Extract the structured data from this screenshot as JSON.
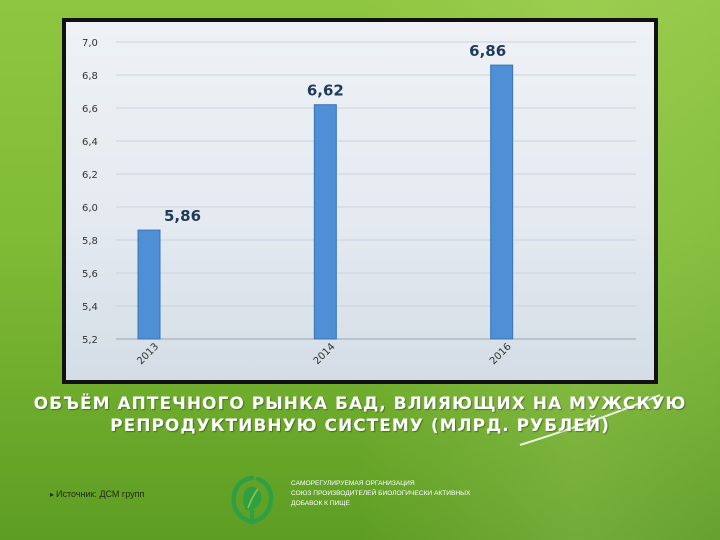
{
  "slide": {
    "title_line1": "ОБЪЁМ АПТЕЧНОГО РЫНКА БАД, ВЛИЯЮЩИХ НА МУЖСКУЮ",
    "title_line2": "РЕПРОДУКТИВНУЮ СИСТЕМУ (МЛРД. РУБЛЕЙ)",
    "source_label": "Источник: ДСМ групп",
    "org_line1": "САМОРЕГУЛИРУЕМАЯ ОРГАНИЗАЦИЯ",
    "org_line2": "СОЮЗ ПРОИЗВОДИТЕЛЕЙ БИОЛОГИЧЕСКИ АКТИВНЫХ",
    "org_line3": "ДОБАВОК К ПИЩЕ"
  },
  "colors": {
    "bar": "#4f8fd6",
    "bar_edge": "#3a74b8",
    "label": "#1f3a5c",
    "gridline": "#c9d2dc",
    "logo": "#2ea043"
  },
  "icons": {
    "logo": "leaf-emblem-icon"
  },
  "chart_data": {
    "type": "bar",
    "categories": [
      "2013",
      "2014",
      "2016"
    ],
    "values": [
      5.86,
      6.62,
      6.86
    ],
    "value_labels": [
      "5,86",
      "6,62",
      "6,86"
    ],
    "ylim": [
      5.2,
      7.0
    ],
    "ytick_labels": [
      "5,2",
      "5,4",
      "5,6",
      "5,8",
      "6,0",
      "6,2",
      "6,4",
      "6,6",
      "6,8",
      "7,0"
    ],
    "grid": true,
    "legend": "none"
  }
}
